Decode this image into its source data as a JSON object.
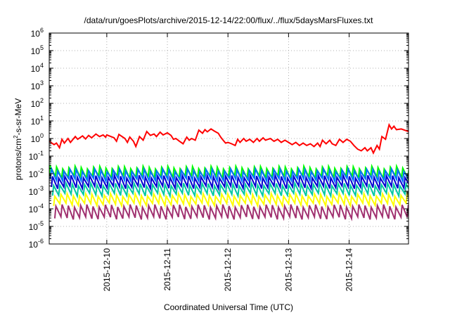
{
  "chart_data": {
    "type": "line",
    "title": "/data/run/goesPlots/archive/2015-12-14/22:00/flux/../flux/5daysMarsFluxes.txt",
    "xlabel": "Coordinated Universal Time (UTC)",
    "ylabel": {
      "pre": "protons/cm",
      "sup": "2",
      "post": "-s-sr-MeV"
    },
    "yscale": "log",
    "ylim": [
      1e-06,
      1000000.0
    ],
    "y_ticks": [
      {
        "exp": "-6",
        "value": 1e-06
      },
      {
        "exp": "-5",
        "value": 1e-05
      },
      {
        "exp": "-4",
        "value": 0.0001
      },
      {
        "exp": "-3",
        "value": 0.001
      },
      {
        "exp": "-2",
        "value": 0.01
      },
      {
        "exp": "-1",
        "value": 0.1
      },
      {
        "exp": "0",
        "value": 1
      },
      {
        "exp": "1",
        "value": 10
      },
      {
        "exp": "2",
        "value": 100
      },
      {
        "exp": "3",
        "value": 1000
      },
      {
        "exp": "4",
        "value": 10000
      },
      {
        "exp": "5",
        "value": 100000
      },
      {
        "exp": "6",
        "value": 1000000
      }
    ],
    "x_days": [
      "2015-12-10",
      "2015-12-11",
      "2015-12-12",
      "2015-12-13",
      "2015-12-14"
    ],
    "xlim_days": [
      -0.95,
      4.98
    ],
    "grid": true,
    "legend": "none",
    "series": [
      {
        "color": "#ff0000",
        "values": [
          [
            -0.95,
            0.7
          ],
          [
            -0.87,
            0.45
          ],
          [
            -0.83,
            0.55
          ],
          [
            -0.78,
            0.3
          ],
          [
            -0.74,
            0.9
          ],
          [
            -0.7,
            0.55
          ],
          [
            -0.64,
            1.0
          ],
          [
            -0.6,
            0.6
          ],
          [
            -0.52,
            1.3
          ],
          [
            -0.48,
            0.9
          ],
          [
            -0.4,
            1.4
          ],
          [
            -0.35,
            0.95
          ],
          [
            -0.3,
            1.5
          ],
          [
            -0.25,
            1.1
          ],
          [
            -0.18,
            1.8
          ],
          [
            -0.12,
            1.3
          ],
          [
            -0.06,
            1.6
          ],
          [
            -0.02,
            1.2
          ],
          [
            0.0,
            1.6
          ],
          [
            0.12,
            1.1
          ],
          [
            0.16,
            0.7
          ],
          [
            0.2,
            1.7
          ],
          [
            0.3,
            1.0
          ],
          [
            0.34,
            0.6
          ],
          [
            0.38,
            1.2
          ],
          [
            0.44,
            0.7
          ],
          [
            0.48,
            0.35
          ],
          [
            0.54,
            1.3
          ],
          [
            0.6,
            0.8
          ],
          [
            0.66,
            2.5
          ],
          [
            0.72,
            1.5
          ],
          [
            0.78,
            1.8
          ],
          [
            0.82,
            1.3
          ],
          [
            0.88,
            2.3
          ],
          [
            0.93,
            1.6
          ],
          [
            1.0,
            2.1
          ],
          [
            1.06,
            1.5
          ],
          [
            1.1,
            0.9
          ],
          [
            1.14,
            1.0
          ],
          [
            1.2,
            0.7
          ],
          [
            1.26,
            0.5
          ],
          [
            1.32,
            1.2
          ],
          [
            1.36,
            0.8
          ],
          [
            1.4,
            1.0
          ],
          [
            1.46,
            0.8
          ],
          [
            1.52,
            3.0
          ],
          [
            1.58,
            2.0
          ],
          [
            1.62,
            3.2
          ],
          [
            1.66,
            2.4
          ],
          [
            1.72,
            3.5
          ],
          [
            1.78,
            2.6
          ],
          [
            1.84,
            2.0
          ],
          [
            1.88,
            1.2
          ],
          [
            1.92,
            0.8
          ],
          [
            1.96,
            0.55
          ],
          [
            2.0,
            0.6
          ],
          [
            2.06,
            0.5
          ],
          [
            2.12,
            0.4
          ],
          [
            2.16,
            0.9
          ],
          [
            2.2,
            0.6
          ],
          [
            2.26,
            1.0
          ],
          [
            2.3,
            0.7
          ],
          [
            2.36,
            0.9
          ],
          [
            2.42,
            0.6
          ],
          [
            2.48,
            1.0
          ],
          [
            2.52,
            0.7
          ],
          [
            2.58,
            1.1
          ],
          [
            2.62,
            0.8
          ],
          [
            2.7,
            1.0
          ],
          [
            2.76,
            0.7
          ],
          [
            2.82,
            0.9
          ],
          [
            2.88,
            0.6
          ],
          [
            2.94,
            0.8
          ],
          [
            3.0,
            0.6
          ],
          [
            3.06,
            0.45
          ],
          [
            3.12,
            0.6
          ],
          [
            3.18,
            0.4
          ],
          [
            3.24,
            0.55
          ],
          [
            3.3,
            0.4
          ],
          [
            3.36,
            0.5
          ],
          [
            3.42,
            0.35
          ],
          [
            3.48,
            0.55
          ],
          [
            3.52,
            0.35
          ],
          [
            3.56,
            0.8
          ],
          [
            3.62,
            0.5
          ],
          [
            3.68,
            0.8
          ],
          [
            3.72,
            0.5
          ],
          [
            3.78,
            0.4
          ],
          [
            3.84,
            0.9
          ],
          [
            3.9,
            0.6
          ],
          [
            3.96,
            0.9
          ],
          [
            4.02,
            0.7
          ],
          [
            4.08,
            0.4
          ],
          [
            4.14,
            0.25
          ],
          [
            4.2,
            0.2
          ],
          [
            4.26,
            0.3
          ],
          [
            4.3,
            0.2
          ],
          [
            4.36,
            0.3
          ],
          [
            4.4,
            0.15
          ],
          [
            4.46,
            0.4
          ],
          [
            4.5,
            0.25
          ],
          [
            4.54,
            1.3
          ],
          [
            4.6,
            0.9
          ],
          [
            4.66,
            6.0
          ],
          [
            4.7,
            3.5
          ],
          [
            4.74,
            5.0
          ],
          [
            4.78,
            3.2
          ],
          [
            4.86,
            3.5
          ],
          [
            4.98,
            2.5
          ]
        ]
      },
      {
        "color": "#00ff00",
        "base": 0.0065,
        "amp": 3.5,
        "phase": 0.0
      },
      {
        "color": "#0070ff",
        "base": 0.0045,
        "amp": 3.5,
        "phase": 0.18
      },
      {
        "color": "#0000d0",
        "base": 0.0017,
        "amp": 4.0,
        "phase": 0.36
      },
      {
        "color": "#00c8a0",
        "base": 0.00065,
        "amp": 3.8,
        "phase": 0.54
      },
      {
        "color": "#ffff00",
        "base": 0.00018,
        "amp": 3.5,
        "phase": 0.72
      },
      {
        "color": "#a0306f",
        "base": 3e-05,
        "amp": 5.0,
        "phase": 0.9
      }
    ]
  }
}
